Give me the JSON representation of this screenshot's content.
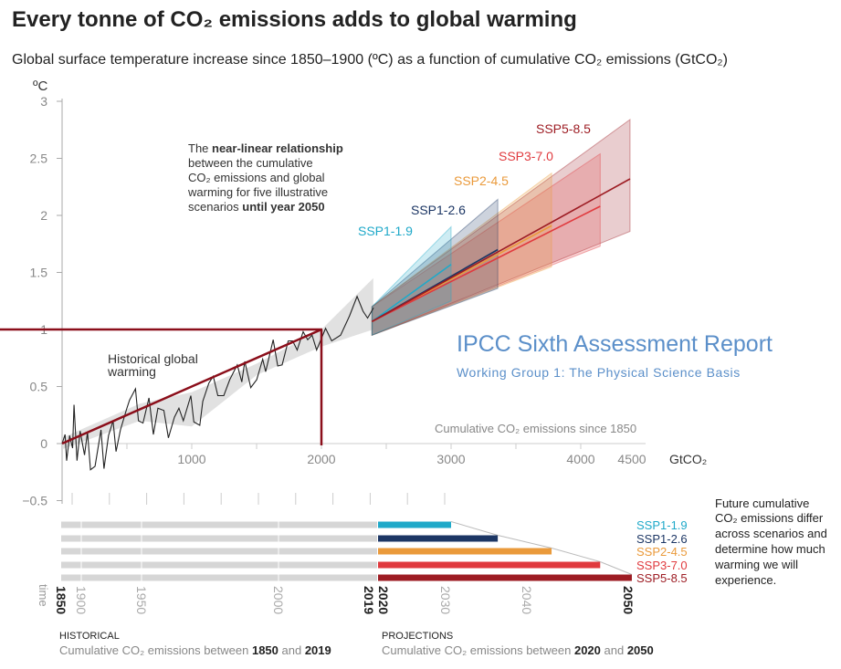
{
  "title": "Every tonne of CO₂ emissions adds to global warming",
  "subtitle": "Global surface temperature increase since 1850–1900 (ºC) as a function of cumulative CO₂ emissions (GtCO₂)",
  "annotation": {
    "l1a": "The ",
    "l1b": "near-linear relationship",
    "l2": "between the cumulative",
    "l3": "CO₂ emissions and global",
    "l4": "warming for five illustrative",
    "l5a": "scenarios ",
    "l5b": "until year 2050"
  },
  "historical_label": [
    "Historical global",
    "warming"
  ],
  "x_axis_note": "Cumulative CO₂ emissions since 1850",
  "watermark": {
    "title": "IPCC Sixth Assessment Report",
    "subtitle": "Working Group 1: The Physical Science Basis"
  },
  "side_note": [
    "Future cumulative",
    "CO₂ emissions differ",
    "across scenarios and",
    "determine how much",
    "warming we will",
    "experience."
  ],
  "timeline": {
    "time_label": "time",
    "years": [
      {
        "label": "1850",
        "bold": true
      },
      {
        "label": "1900",
        "bold": false
      },
      {
        "label": "1950",
        "bold": false
      },
      {
        "label": "2000",
        "bold": false
      },
      {
        "label": "2019",
        "bold": true
      },
      {
        "label": "2020",
        "bold": true
      },
      {
        "label": "2030",
        "bold": false
      },
      {
        "label": "2040",
        "bold": false
      },
      {
        "label": "2050",
        "bold": true
      }
    ],
    "historical_heading": "HISTORICAL",
    "historical_text": "Cumulative CO₂ emissions between ",
    "historical_y1": "1850",
    "and": " and ",
    "historical_y2": "2019",
    "projections_heading": "PROJECTIONS",
    "projections_text": "Cumulative CO₂ emissions between ",
    "projections_y1": "2020",
    "projections_y2": "2050"
  },
  "chart_data": {
    "type": "line",
    "title": "Every tonne of CO₂ emissions adds to global warming",
    "xlabel": "GtCO₂",
    "ylabel": "ºC",
    "xlim": [
      0,
      4500
    ],
    "ylim": [
      -0.5,
      3
    ],
    "x_ticks": [
      1000,
      2000,
      3000,
      4000,
      4500
    ],
    "x_tick_labels": [
      "1000",
      "2000",
      "3000",
      "4000",
      "4500"
    ],
    "y_ticks": [
      -0.5,
      0,
      0.5,
      1,
      1.5,
      2,
      2.5,
      3
    ],
    "y_tick_labels": [
      "−0.5",
      "0",
      "0.5",
      "1",
      "1.5",
      "2",
      "2.5",
      "3"
    ],
    "historical": [
      [
        0,
        0
      ],
      [
        23,
        0.08
      ],
      [
        35,
        -0.15
      ],
      [
        58,
        0.07
      ],
      [
        81,
        -0.04
      ],
      [
        92,
        0.34
      ],
      [
        115,
        -0.15
      ],
      [
        139,
        0.11
      ],
      [
        173,
        -0.1
      ],
      [
        196,
        0.1
      ],
      [
        219,
        -0.23
      ],
      [
        254,
        -0.2
      ],
      [
        300,
        0.12
      ],
      [
        323,
        -0.22
      ],
      [
        358,
        0.07
      ],
      [
        393,
        0.2
      ],
      [
        416,
        -0.07
      ],
      [
        450,
        0.12
      ],
      [
        497,
        0.3
      ],
      [
        520,
        0.38
      ],
      [
        566,
        0.48
      ],
      [
        589,
        0.2
      ],
      [
        624,
        0.18
      ],
      [
        670,
        0.4
      ],
      [
        704,
        0.08
      ],
      [
        739,
        0.31
      ],
      [
        785,
        0.29
      ],
      [
        820,
        0.05
      ],
      [
        866,
        0.23
      ],
      [
        901,
        0.31
      ],
      [
        935,
        0.2
      ],
      [
        993,
        0.42
      ],
      [
        1016,
        0.19
      ],
      [
        1062,
        0.16
      ],
      [
        1085,
        0.37
      ],
      [
        1132,
        0.53
      ],
      [
        1166,
        0.59
      ],
      [
        1201,
        0.42
      ],
      [
        1247,
        0.42
      ],
      [
        1293,
        0.56
      ],
      [
        1351,
        0.69
      ],
      [
        1386,
        0.54
      ],
      [
        1409,
        0.72
      ],
      [
        1455,
        0.49
      ],
      [
        1501,
        0.56
      ],
      [
        1547,
        0.74
      ],
      [
        1570,
        0.63
      ],
      [
        1628,
        0.91
      ],
      [
        1663,
        0.68
      ],
      [
        1697,
        0.69
      ],
      [
        1744,
        0.9
      ],
      [
        1778,
        0.9
      ],
      [
        1813,
        0.82
      ],
      [
        1859,
        0.98
      ],
      [
        1894,
        0.91
      ],
      [
        1928,
        0.95
      ],
      [
        1963,
        0.82
      ],
      [
        2032,
        1.01
      ],
      [
        2079,
        0.9
      ],
      [
        2148,
        0.95
      ],
      [
        2217,
        1.12
      ],
      [
        2275,
        1.29
      ],
      [
        2321,
        1.16
      ],
      [
        2356,
        1.1
      ],
      [
        2402,
        1.19
      ]
    ],
    "historical_band": {
      "x": [
        0,
        600,
        1000,
        1500,
        2000,
        2400
      ],
      "lower": [
        -0.05,
        0.2,
        0.15,
        0.6,
        0.85,
        1.0
      ],
      "upper": [
        0.05,
        0.35,
        0.45,
        0.7,
        1.0,
        1.45
      ]
    },
    "reference_line": {
      "from": [
        0,
        0
      ],
      "to": [
        2000,
        1
      ]
    },
    "projection_start": {
      "x": 2390,
      "y": 1.07,
      "lower": 0.95,
      "upper": 1.2
    },
    "scenarios": [
      {
        "name": "SSP1-1.9",
        "color": "#1fa9c9",
        "end_x": 3000,
        "mean": 1.57,
        "lower": 1.25,
        "upper": 1.9
      },
      {
        "name": "SSP1-2.6",
        "color": "#1c3664",
        "end_x": 3360,
        "mean": 1.7,
        "lower": 1.36,
        "upper": 2.14
      },
      {
        "name": "SSP2-4.5",
        "color": "#ea9a3b",
        "end_x": 3775,
        "mean": 1.91,
        "lower": 1.55,
        "upper": 2.37
      },
      {
        "name": "SSP3-7.0",
        "color": "#e03a3e",
        "end_x": 4150,
        "mean": 2.08,
        "lower": 1.73,
        "upper": 2.54
      },
      {
        "name": "SSP5-8.5",
        "color": "#9d1c23",
        "end_x": 4380,
        "mean": 2.32,
        "lower": 1.86,
        "upper": 2.84
      }
    ]
  }
}
